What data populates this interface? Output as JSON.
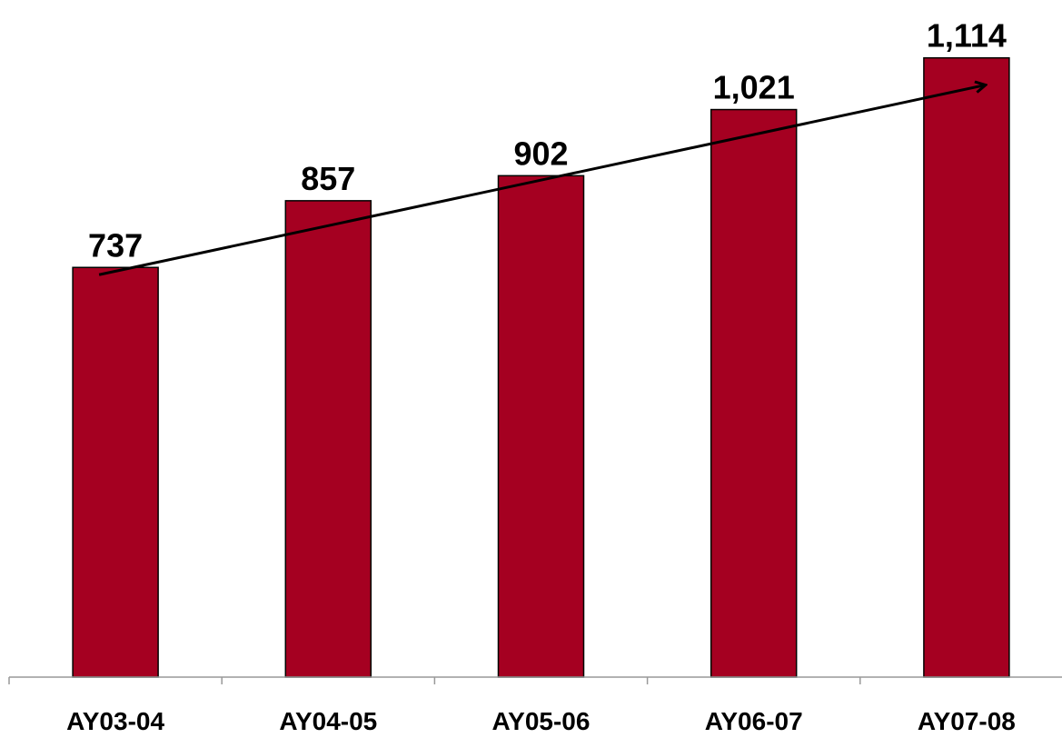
{
  "chart_data": {
    "type": "bar",
    "categories": [
      "AY03-04",
      "AY04-05",
      "AY05-06",
      "AY06-07",
      "AY07-08"
    ],
    "values": [
      737,
      857,
      902,
      1021,
      1114
    ],
    "value_labels": [
      "737",
      "857",
      "902",
      "1,021",
      "1,114"
    ],
    "title": "",
    "xlabel": "",
    "ylabel": "",
    "ylim": [
      0,
      1200
    ],
    "grid": false,
    "legend": "none",
    "trend_arrow": true,
    "colors": {
      "bar": "#A50021",
      "axis": "#999999",
      "text": "#000000"
    }
  }
}
